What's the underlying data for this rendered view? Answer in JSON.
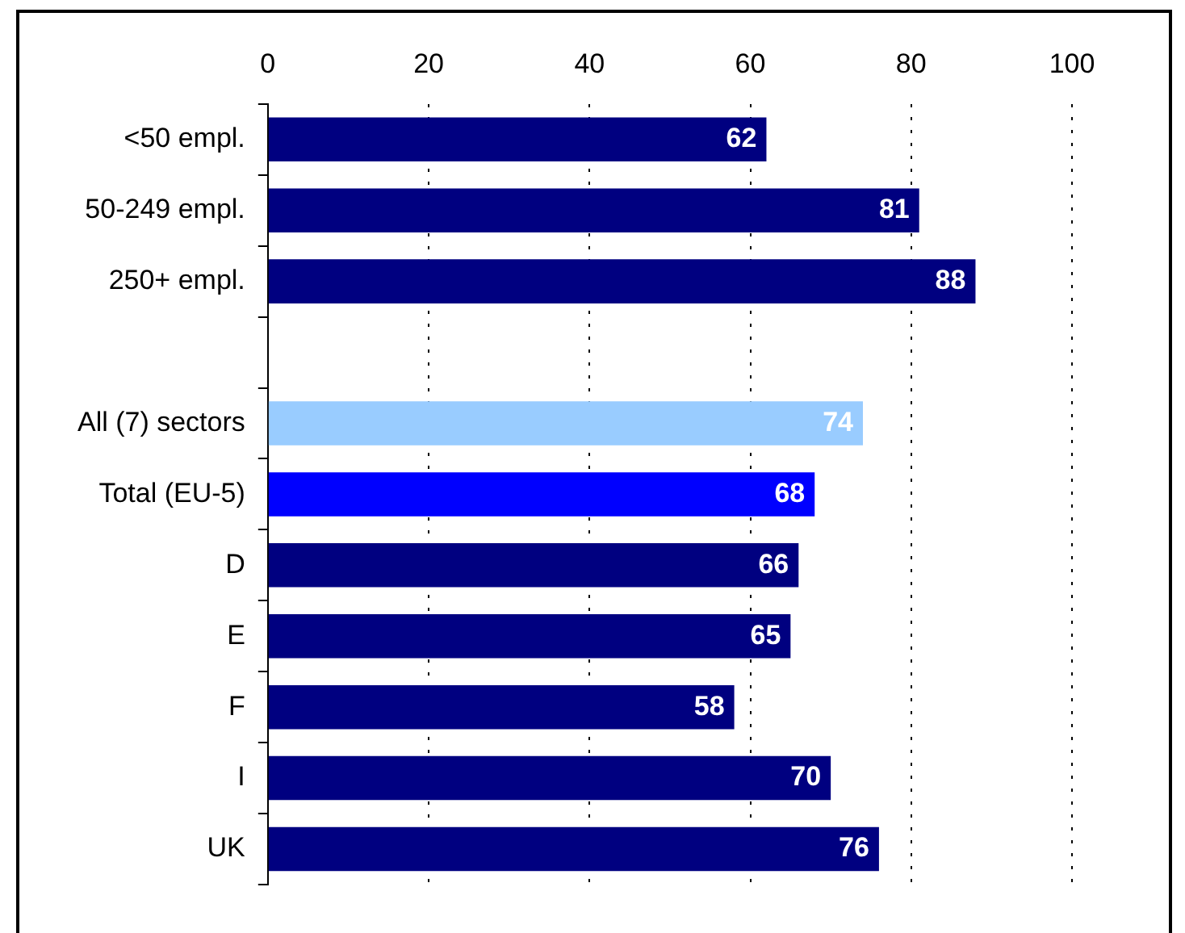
{
  "chart_data": {
    "type": "bar",
    "orientation": "horizontal",
    "categories": [
      "<50 empl.",
      "50-249 empl.",
      "250+ empl.",
      null,
      "All (7) sectors",
      "Total (EU-5)",
      "D",
      "E",
      "F",
      "I",
      "UK"
    ],
    "values": [
      62,
      81,
      88,
      null,
      74,
      68,
      66,
      65,
      58,
      70,
      76
    ],
    "colors": [
      "#000080",
      "#000080",
      "#000080",
      "#000080",
      "#99ccff",
      "#0000ff",
      "#000080",
      "#000080",
      "#000080",
      "#000080",
      "#000080"
    ],
    "xlim": [
      0,
      100
    ],
    "xticks": [
      0,
      20,
      40,
      60,
      80,
      100
    ],
    "grid": "x",
    "data_labels": true
  }
}
